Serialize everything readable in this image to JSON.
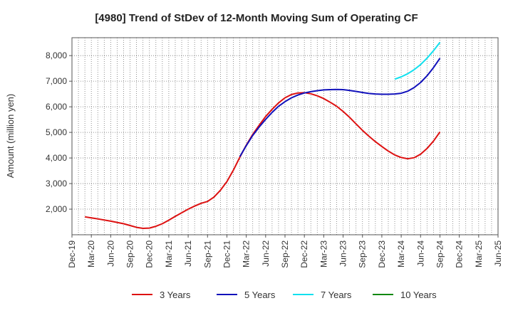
{
  "chart_data": {
    "type": "line",
    "title": "[4980]  Trend of StDev of 12-Month Moving Sum of Operating CF",
    "ylabel": "Amount (million yen)",
    "xlabel": "",
    "ylim": [
      1000,
      8700
    ],
    "yticks": [
      2000,
      3000,
      4000,
      5000,
      6000,
      7000,
      8000
    ],
    "ytick_labels": [
      "2,000",
      "3,000",
      "4,000",
      "5,000",
      "6,000",
      "7,000",
      "8,000"
    ],
    "x_months_range": [
      0,
      66
    ],
    "xticks": [
      {
        "m": 0,
        "label": "Dec-19"
      },
      {
        "m": 3,
        "label": "Mar-20"
      },
      {
        "m": 6,
        "label": "Jun-20"
      },
      {
        "m": 9,
        "label": "Sep-20"
      },
      {
        "m": 12,
        "label": "Dec-20"
      },
      {
        "m": 15,
        "label": "Mar-21"
      },
      {
        "m": 18,
        "label": "Jun-21"
      },
      {
        "m": 21,
        "label": "Sep-21"
      },
      {
        "m": 24,
        "label": "Dec-21"
      },
      {
        "m": 27,
        "label": "Mar-22"
      },
      {
        "m": 30,
        "label": "Jun-22"
      },
      {
        "m": 33,
        "label": "Sep-22"
      },
      {
        "m": 36,
        "label": "Dec-22"
      },
      {
        "m": 39,
        "label": "Mar-23"
      },
      {
        "m": 42,
        "label": "Jun-23"
      },
      {
        "m": 45,
        "label": "Sep-23"
      },
      {
        "m": 48,
        "label": "Dec-23"
      },
      {
        "m": 51,
        "label": "Mar-24"
      },
      {
        "m": 54,
        "label": "Jun-24"
      },
      {
        "m": 57,
        "label": "Sep-24"
      },
      {
        "m": 60,
        "label": "Dec-24"
      },
      {
        "m": 63,
        "label": "Mar-25"
      },
      {
        "m": 66,
        "label": "Jun-25"
      }
    ],
    "grid": true,
    "legend_position": "bottom",
    "series": [
      {
        "name": "3 Years",
        "color": "#dd1111",
        "points": [
          [
            2,
            1700
          ],
          [
            4,
            1620
          ],
          [
            6,
            1530
          ],
          [
            8,
            1430
          ],
          [
            9,
            1360
          ],
          [
            10,
            1290
          ],
          [
            11,
            1250
          ],
          [
            12,
            1260
          ],
          [
            13,
            1330
          ],
          [
            14,
            1430
          ],
          [
            15,
            1570
          ],
          [
            16,
            1720
          ],
          [
            17,
            1860
          ],
          [
            18,
            2000
          ],
          [
            19,
            2120
          ],
          [
            20,
            2230
          ],
          [
            21,
            2300
          ],
          [
            22,
            2470
          ],
          [
            23,
            2740
          ],
          [
            24,
            3080
          ],
          [
            25,
            3520
          ],
          [
            26,
            4030
          ],
          [
            27,
            4500
          ],
          [
            28,
            4920
          ],
          [
            29,
            5280
          ],
          [
            30,
            5620
          ],
          [
            31,
            5900
          ],
          [
            32,
            6150
          ],
          [
            33,
            6350
          ],
          [
            34,
            6480
          ],
          [
            35,
            6540
          ],
          [
            36,
            6550
          ],
          [
            37,
            6510
          ],
          [
            38,
            6430
          ],
          [
            39,
            6320
          ],
          [
            40,
            6180
          ],
          [
            41,
            6020
          ],
          [
            42,
            5820
          ],
          [
            43,
            5590
          ],
          [
            44,
            5330
          ],
          [
            45,
            5080
          ],
          [
            46,
            4850
          ],
          [
            47,
            4640
          ],
          [
            48,
            4450
          ],
          [
            49,
            4270
          ],
          [
            50,
            4120
          ],
          [
            51,
            4020
          ],
          [
            52,
            3970
          ],
          [
            53,
            4010
          ],
          [
            54,
            4150
          ],
          [
            55,
            4370
          ],
          [
            56,
            4660
          ],
          [
            57,
            5020
          ]
        ]
      },
      {
        "name": "5 Years",
        "color": "#1111bb",
        "points": [
          [
            26,
            4050
          ],
          [
            27,
            4480
          ],
          [
            28,
            4880
          ],
          [
            29,
            5210
          ],
          [
            30,
            5510
          ],
          [
            31,
            5780
          ],
          [
            32,
            6020
          ],
          [
            33,
            6200
          ],
          [
            34,
            6350
          ],
          [
            35,
            6460
          ],
          [
            36,
            6540
          ],
          [
            37,
            6590
          ],
          [
            38,
            6630
          ],
          [
            39,
            6660
          ],
          [
            40,
            6670
          ],
          [
            41,
            6680
          ],
          [
            42,
            6670
          ],
          [
            43,
            6640
          ],
          [
            44,
            6600
          ],
          [
            45,
            6560
          ],
          [
            46,
            6520
          ],
          [
            47,
            6500
          ],
          [
            48,
            6490
          ],
          [
            49,
            6490
          ],
          [
            50,
            6500
          ],
          [
            51,
            6530
          ],
          [
            52,
            6610
          ],
          [
            53,
            6750
          ],
          [
            54,
            6950
          ],
          [
            55,
            7210
          ],
          [
            56,
            7530
          ],
          [
            57,
            7900
          ]
        ]
      },
      {
        "name": "7 Years",
        "color": "#11e0ee",
        "points": [
          [
            50,
            7080
          ],
          [
            51,
            7170
          ],
          [
            52,
            7290
          ],
          [
            53,
            7450
          ],
          [
            54,
            7650
          ],
          [
            55,
            7900
          ],
          [
            56,
            8190
          ],
          [
            57,
            8520
          ]
        ]
      },
      {
        "name": "10 Years",
        "color": "#118811",
        "points": []
      }
    ]
  }
}
